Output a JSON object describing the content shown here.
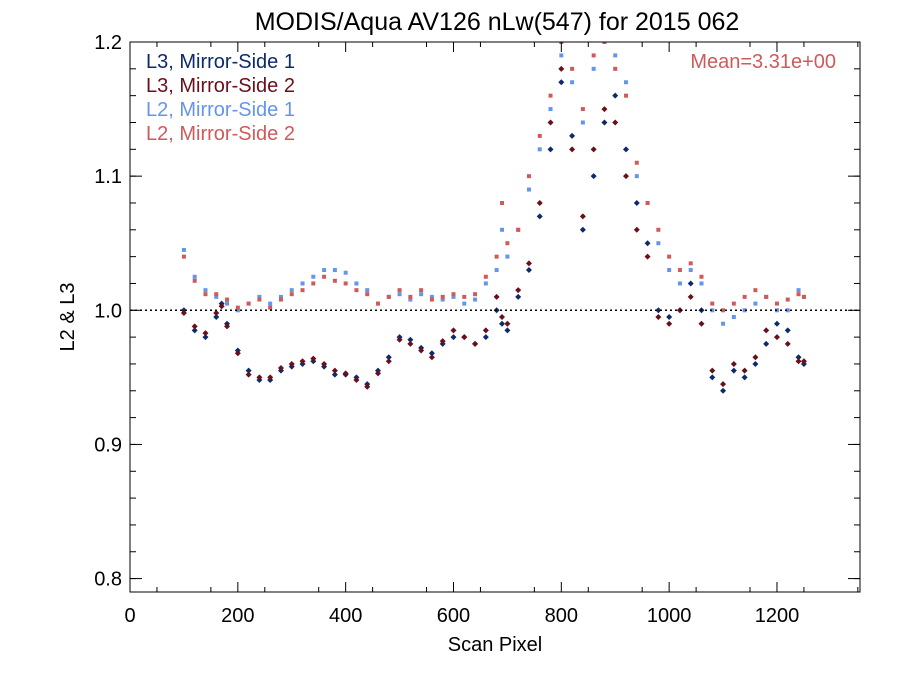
{
  "chart_data": {
    "type": "scatter",
    "title": "MODIS/Aqua AV126 nLw(547) for 2015 062",
    "xlabel": "Scan Pixel",
    "ylabel": "L2 & L3",
    "xlim": [
      0,
      1354
    ],
    "ylim": [
      0.79,
      1.2
    ],
    "xticks": [
      0,
      200,
      400,
      600,
      800,
      1000,
      1200
    ],
    "xtick_labels": [
      "0",
      "200",
      "400",
      "600",
      "800",
      "1000",
      "1200"
    ],
    "yticks": [
      0.8,
      0.9,
      1.0,
      1.1,
      1.2
    ],
    "ytick_labels": [
      "0.8",
      "0.9",
      "1.0",
      "1.1",
      "1.2"
    ],
    "reference_line": 1.0,
    "grid": false,
    "legend_position": "top-left",
    "annotation": "Mean=3.31e+00",
    "annotation_color": "#D05A5A",
    "series": [
      {
        "name": "L3, Mirror-Side 1",
        "color": "#0D2B6B",
        "marker": "diamond",
        "x": [
          100,
          120,
          140,
          160,
          170,
          180,
          200,
          220,
          240,
          260,
          280,
          300,
          320,
          340,
          360,
          380,
          400,
          420,
          440,
          460,
          480,
          500,
          520,
          540,
          560,
          580,
          600,
          620,
          640,
          660,
          680,
          690,
          700,
          720,
          740,
          760,
          780,
          800,
          820,
          840,
          860,
          880,
          900,
          920,
          940,
          960,
          980,
          1000,
          1020,
          1040,
          1060,
          1080,
          1100,
          1120,
          1140,
          1160,
          1180,
          1200,
          1220,
          1240,
          1250
        ],
        "y": [
          1.0,
          0.985,
          0.98,
          0.995,
          1.005,
          0.99,
          0.97,
          0.955,
          0.948,
          0.948,
          0.955,
          0.958,
          0.96,
          0.962,
          0.958,
          0.952,
          0.952,
          0.95,
          0.945,
          0.955,
          0.965,
          0.98,
          0.978,
          0.972,
          0.968,
          0.975,
          0.98,
          0.98,
          0.975,
          0.98,
          1.0,
          0.99,
          0.985,
          1.01,
          1.03,
          1.07,
          1.12,
          1.17,
          1.13,
          1.06,
          1.1,
          1.14,
          1.16,
          1.12,
          1.08,
          1.05,
          1.0,
          0.995,
          1.0,
          1.02,
          1.0,
          0.95,
          0.94,
          0.955,
          0.95,
          0.96,
          0.975,
          0.99,
          0.985,
          0.965,
          0.96
        ]
      },
      {
        "name": "L3, Mirror-Side 2",
        "color": "#6B0F1A",
        "marker": "diamond",
        "x": [
          100,
          120,
          140,
          160,
          170,
          180,
          200,
          220,
          240,
          260,
          280,
          300,
          320,
          340,
          360,
          380,
          400,
          420,
          440,
          460,
          480,
          500,
          520,
          540,
          560,
          580,
          600,
          620,
          640,
          660,
          680,
          690,
          700,
          720,
          740,
          760,
          780,
          800,
          820,
          840,
          860,
          880,
          900,
          920,
          940,
          960,
          980,
          1000,
          1020,
          1040,
          1060,
          1080,
          1100,
          1120,
          1140,
          1160,
          1180,
          1200,
          1220,
          1240,
          1250
        ],
        "y": [
          0.998,
          0.988,
          0.983,
          0.998,
          1.003,
          0.988,
          0.968,
          0.952,
          0.95,
          0.95,
          0.957,
          0.96,
          0.962,
          0.964,
          0.96,
          0.955,
          0.953,
          0.948,
          0.943,
          0.953,
          0.962,
          0.978,
          0.975,
          0.97,
          0.965,
          0.977,
          0.985,
          0.98,
          0.975,
          0.985,
          1.01,
          0.995,
          0.99,
          1.015,
          1.035,
          1.08,
          1.14,
          1.18,
          1.12,
          1.07,
          1.12,
          1.15,
          1.14,
          1.1,
          1.06,
          1.04,
          0.995,
          0.99,
          1.0,
          1.01,
          0.99,
          0.955,
          0.945,
          0.96,
          0.955,
          0.965,
          0.985,
          0.98,
          0.975,
          0.962,
          0.962
        ]
      },
      {
        "name": "L2, Mirror-Side 1",
        "color": "#6495ED",
        "marker": "square",
        "x": [
          100,
          120,
          140,
          160,
          180,
          200,
          220,
          240,
          260,
          280,
          300,
          320,
          340,
          360,
          380,
          400,
          420,
          440,
          460,
          480,
          500,
          520,
          540,
          560,
          580,
          600,
          620,
          640,
          660,
          680,
          690,
          700,
          720,
          740,
          760,
          780,
          800,
          820,
          840,
          860,
          880,
          900,
          920,
          940,
          960,
          980,
          1000,
          1020,
          1040,
          1060,
          1080,
          1100,
          1120,
          1140,
          1160,
          1180,
          1200,
          1220,
          1240,
          1250
        ],
        "y": [
          1.045,
          1.025,
          1.015,
          1.01,
          1.005,
          1.0,
          1.005,
          1.01,
          1.005,
          1.01,
          1.015,
          1.02,
          1.025,
          1.03,
          1.03,
          1.028,
          1.02,
          1.015,
          1.005,
          1.01,
          1.012,
          1.008,
          1.012,
          1.01,
          1.008,
          1.01,
          1.005,
          1.008,
          1.02,
          1.03,
          1.06,
          1.04,
          1.06,
          1.09,
          1.12,
          1.15,
          1.19,
          1.17,
          1.14,
          1.18,
          1.2,
          1.19,
          1.17,
          1.1,
          1.08,
          1.05,
          1.03,
          1.02,
          1.03,
          1.02,
          1.0,
          0.99,
          0.995,
          1.0,
          1.005,
          1.01,
          1.0,
          1.0,
          1.015,
          1.01
        ]
      },
      {
        "name": "L2, Mirror-Side 2",
        "color": "#D05A5A",
        "marker": "square",
        "x": [
          100,
          120,
          140,
          160,
          180,
          200,
          220,
          240,
          260,
          280,
          300,
          320,
          340,
          360,
          380,
          400,
          420,
          440,
          460,
          480,
          500,
          520,
          540,
          560,
          580,
          600,
          620,
          640,
          660,
          680,
          690,
          700,
          720,
          740,
          760,
          780,
          800,
          820,
          840,
          860,
          880,
          900,
          920,
          940,
          960,
          980,
          1000,
          1020,
          1040,
          1060,
          1080,
          1100,
          1120,
          1140,
          1160,
          1180,
          1200,
          1220,
          1240,
          1250
        ],
        "y": [
          1.04,
          1.022,
          1.012,
          1.012,
          1.008,
          1.002,
          1.005,
          1.008,
          1.002,
          1.008,
          1.012,
          1.015,
          1.02,
          1.025,
          1.022,
          1.02,
          1.015,
          1.012,
          1.005,
          1.01,
          1.015,
          1.01,
          1.015,
          1.008,
          1.01,
          1.012,
          1.01,
          1.012,
          1.025,
          1.04,
          1.08,
          1.05,
          1.06,
          1.1,
          1.13,
          1.16,
          1.2,
          1.18,
          1.15,
          1.19,
          1.2,
          1.18,
          1.16,
          1.11,
          1.08,
          1.06,
          1.04,
          1.03,
          1.035,
          1.025,
          1.005,
          1.0,
          1.005,
          1.01,
          1.015,
          1.01,
          1.005,
          1.008,
          1.012,
          1.01
        ]
      }
    ]
  }
}
